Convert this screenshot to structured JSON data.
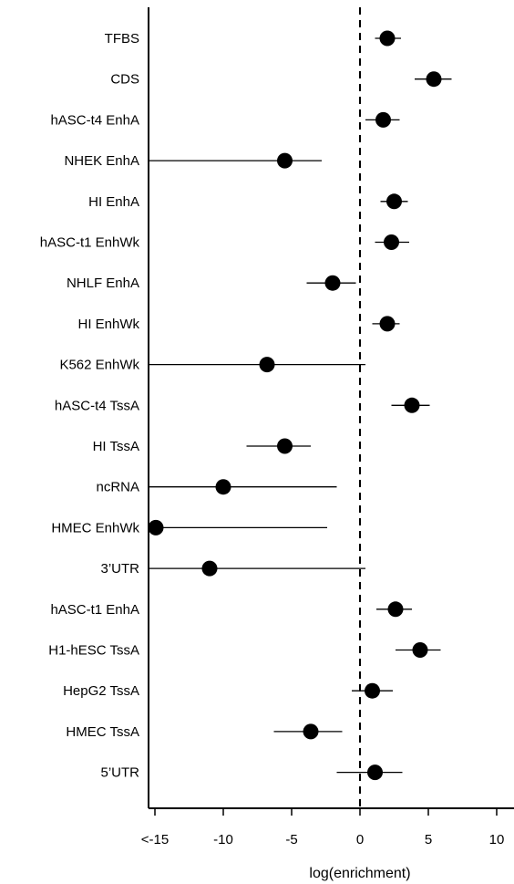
{
  "chart_data": {
    "type": "scatter",
    "title": "",
    "xlabel": "log(enrichment)",
    "ylabel": "",
    "xlim": [
      -15.5,
      11
    ],
    "x_ticks": [
      -15,
      -10,
      -5,
      0,
      5,
      10
    ],
    "x_tick_labels": [
      "<-15",
      "-10",
      "-5",
      "0",
      "5",
      "10"
    ],
    "reference_line": {
      "x": 0,
      "style": "dashed"
    },
    "grid": false,
    "legend": "none",
    "colors": {
      "marker": "#000000",
      "line": "#000000"
    },
    "categories": [
      "TFBS",
      "CDS",
      "hASC-t4 EnhA",
      "NHEK EnhA",
      "HI EnhA",
      "hASC-t1 EnhWk",
      "NHLF EnhA",
      "HI EnhWk",
      "K562 EnhWk",
      "hASC-t4 TssA",
      "HI TssA",
      "ncRNA",
      "HMEC EnhWk",
      "3’UTR",
      "hASC-t1 EnhA",
      "H1-hESC TssA",
      "HepG2 TssA",
      "HMEC TssA",
      "5’UTR"
    ],
    "estimates": [
      2.0,
      5.4,
      1.7,
      -5.5,
      2.5,
      2.3,
      -2.0,
      2.0,
      -6.8,
      3.8,
      -5.5,
      -10.0,
      -15.5,
      -11.0,
      2.6,
      4.4,
      0.9,
      -3.6,
      1.1
    ],
    "ci_low": [
      1.1,
      4.0,
      0.4,
      -15.5,
      1.5,
      1.1,
      -3.9,
      0.9,
      -15.5,
      2.3,
      -8.3,
      -15.5,
      -15.5,
      -15.5,
      1.2,
      2.6,
      -0.6,
      -6.3,
      -1.7
    ],
    "ci_high": [
      3.0,
      6.7,
      2.9,
      -2.8,
      3.5,
      3.6,
      -0.3,
      2.9,
      0.4,
      5.1,
      -3.6,
      -1.7,
      -2.4,
      0.4,
      3.8,
      5.9,
      2.4,
      -1.3,
      3.1
    ]
  }
}
